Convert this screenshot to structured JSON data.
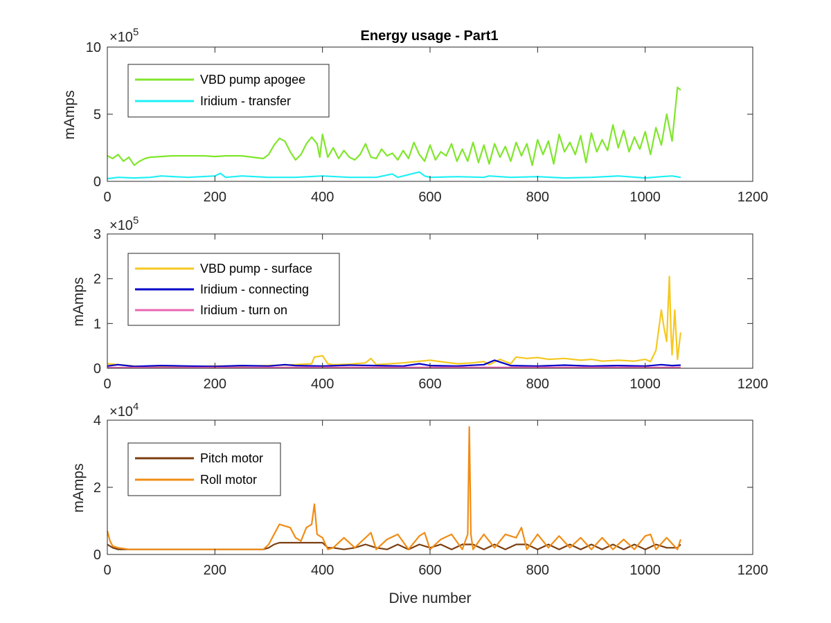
{
  "chart_data": [
    {
      "type": "line",
      "title": "Energy usage - Part1",
      "xlabel": "",
      "ylabel": "mAmps",
      "multiplier_base": "10",
      "multiplier_exp": "5",
      "xlim": [
        0,
        1200
      ],
      "ylim": [
        0,
        1000000
      ],
      "xticks": [
        "0",
        "200",
        "400",
        "600",
        "800",
        "1000",
        "1200"
      ],
      "yticks": [
        "0",
        "5",
        "10"
      ],
      "ytick_values": [
        0,
        500000,
        1000000
      ],
      "legend_position": "top-left",
      "series": [
        {
          "name": "VBD pump apogee",
          "color": "#7fe62b",
          "x": [
            0,
            10,
            20,
            30,
            40,
            50,
            60,
            70,
            80,
            100,
            120,
            150,
            180,
            200,
            220,
            250,
            270,
            290,
            300,
            310,
            320,
            330,
            340,
            350,
            360,
            370,
            380,
            390,
            395,
            400,
            410,
            420,
            430,
            440,
            450,
            460,
            470,
            480,
            490,
            500,
            510,
            520,
            530,
            540,
            550,
            560,
            570,
            580,
            590,
            600,
            610,
            620,
            630,
            640,
            650,
            660,
            670,
            680,
            690,
            700,
            710,
            720,
            730,
            740,
            750,
            760,
            770,
            780,
            790,
            800,
            810,
            820,
            830,
            840,
            850,
            860,
            870,
            880,
            890,
            900,
            910,
            920,
            930,
            940,
            950,
            960,
            970,
            980,
            990,
            1000,
            1010,
            1020,
            1030,
            1040,
            1050,
            1060,
            1066
          ],
          "y": [
            190000,
            170000,
            200000,
            150000,
            180000,
            120000,
            150000,
            170000,
            180000,
            185000,
            190000,
            190000,
            190000,
            185000,
            190000,
            190000,
            180000,
            170000,
            200000,
            270000,
            320000,
            300000,
            220000,
            160000,
            200000,
            280000,
            330000,
            280000,
            180000,
            350000,
            180000,
            250000,
            170000,
            230000,
            180000,
            160000,
            200000,
            280000,
            180000,
            170000,
            240000,
            190000,
            210000,
            160000,
            230000,
            170000,
            290000,
            200000,
            150000,
            270000,
            160000,
            220000,
            190000,
            280000,
            150000,
            240000,
            150000,
            290000,
            140000,
            270000,
            130000,
            280000,
            180000,
            260000,
            150000,
            290000,
            190000,
            280000,
            120000,
            310000,
            200000,
            300000,
            130000,
            350000,
            220000,
            290000,
            200000,
            340000,
            140000,
            360000,
            220000,
            310000,
            230000,
            420000,
            250000,
            380000,
            220000,
            330000,
            240000,
            370000,
            200000,
            400000,
            270000,
            500000,
            300000,
            700000,
            680000
          ]
        },
        {
          "name": "Iridium - transfer",
          "color": "#1ef0f5",
          "x": [
            0,
            20,
            50,
            80,
            100,
            150,
            200,
            210,
            220,
            250,
            300,
            350,
            400,
            450,
            500,
            530,
            540,
            580,
            590,
            600,
            650,
            700,
            710,
            750,
            800,
            850,
            900,
            950,
            1000,
            1030,
            1050,
            1066
          ],
          "y": [
            20000,
            30000,
            25000,
            30000,
            40000,
            30000,
            40000,
            60000,
            30000,
            40000,
            30000,
            30000,
            40000,
            30000,
            30000,
            55000,
            30000,
            70000,
            40000,
            30000,
            35000,
            30000,
            40000,
            30000,
            35000,
            25000,
            30000,
            40000,
            25000,
            35000,
            40000,
            30000
          ]
        }
      ]
    },
    {
      "type": "line",
      "title": "",
      "xlabel": "",
      "ylabel": "mAmps",
      "multiplier_base": "10",
      "multiplier_exp": "5",
      "xlim": [
        0,
        1200
      ],
      "ylim": [
        0,
        300000
      ],
      "xticks": [
        "0",
        "200",
        "400",
        "600",
        "800",
        "1000",
        "1200"
      ],
      "yticks": [
        "0",
        "1",
        "2",
        "3"
      ],
      "ytick_values": [
        0,
        100000,
        200000,
        300000
      ],
      "legend_position": "top-left",
      "series": [
        {
          "name": "VBD pump - surface",
          "color": "#f5c81e",
          "x": [
            0,
            50,
            100,
            150,
            200,
            250,
            300,
            350,
            380,
            385,
            400,
            410,
            420,
            450,
            480,
            490,
            500,
            550,
            600,
            650,
            680,
            700,
            710,
            730,
            750,
            760,
            780,
            800,
            820,
            850,
            880,
            900,
            920,
            950,
            980,
            1000,
            1010,
            1020,
            1030,
            1035,
            1040,
            1045,
            1048,
            1050,
            1055,
            1060,
            1066
          ],
          "y": [
            10000,
            5000,
            3000,
            4000,
            5000,
            5000,
            6000,
            8000,
            10000,
            25000,
            28000,
            10000,
            8000,
            9000,
            12000,
            22000,
            8000,
            12000,
            18000,
            10000,
            12000,
            15000,
            8000,
            20000,
            10000,
            25000,
            22000,
            24000,
            20000,
            22000,
            18000,
            20000,
            16000,
            18000,
            16000,
            20000,
            15000,
            40000,
            130000,
            90000,
            60000,
            205000,
            80000,
            30000,
            130000,
            20000,
            80000
          ]
        },
        {
          "name": "Iridium - connecting",
          "color": "#0000c8",
          "x": [
            0,
            20,
            50,
            100,
            150,
            200,
            250,
            300,
            330,
            350,
            400,
            450,
            500,
            550,
            580,
            600,
            650,
            700,
            720,
            750,
            800,
            850,
            900,
            950,
            1000,
            1030,
            1050,
            1066
          ],
          "y": [
            5000,
            8000,
            4000,
            6000,
            5000,
            4000,
            6000,
            5000,
            8000,
            6000,
            5000,
            7000,
            6000,
            5000,
            10000,
            6000,
            5000,
            8000,
            18000,
            6000,
            5000,
            7000,
            5000,
            6000,
            5000,
            8000,
            6000,
            7000
          ]
        },
        {
          "name": "Iridium - turn on",
          "color": "#e866b0",
          "x": [
            0,
            200,
            400,
            600,
            800,
            1000,
            1066
          ],
          "y": [
            1500,
            1500,
            2000,
            2000,
            2000,
            2000,
            2000
          ]
        }
      ]
    },
    {
      "type": "line",
      "title": "",
      "xlabel": "Dive number",
      "ylabel": "mAmps",
      "multiplier_base": "10",
      "multiplier_exp": "4",
      "xlim": [
        0,
        1200
      ],
      "ylim": [
        0,
        40000
      ],
      "xticks": [
        "0",
        "200",
        "400",
        "600",
        "800",
        "1000",
        "1200"
      ],
      "yticks": [
        "0",
        "2",
        "4"
      ],
      "ytick_values": [
        0,
        20000,
        40000
      ],
      "legend_position": "top-left",
      "series": [
        {
          "name": "Pitch motor",
          "color": "#7a3d0f",
          "x": [
            0,
            5,
            10,
            20,
            40,
            60,
            80,
            100,
            150,
            200,
            250,
            290,
            300,
            310,
            320,
            350,
            380,
            400,
            410,
            420,
            440,
            460,
            480,
            500,
            520,
            540,
            560,
            580,
            600,
            620,
            640,
            660,
            680,
            700,
            720,
            740,
            760,
            780,
            800,
            820,
            840,
            860,
            880,
            900,
            920,
            940,
            960,
            980,
            1000,
            1020,
            1040,
            1060,
            1066
          ],
          "y": [
            3000,
            2500,
            2000,
            1500,
            1500,
            1500,
            1500,
            1500,
            1500,
            1500,
            1500,
            1500,
            2000,
            3000,
            3500,
            3500,
            3500,
            3500,
            2000,
            2000,
            1500,
            2000,
            3000,
            2000,
            1500,
            3000,
            1500,
            3000,
            2000,
            3000,
            1500,
            3000,
            3000,
            1500,
            3000,
            1500,
            3000,
            3000,
            1500,
            3000,
            1500,
            3000,
            1500,
            3000,
            1500,
            3000,
            1500,
            3000,
            1500,
            3000,
            2000,
            2000,
            3000
          ]
        },
        {
          "name": "Roll motor",
          "color": "#f08c14",
          "x": [
            0,
            5,
            10,
            20,
            40,
            60,
            80,
            100,
            150,
            200,
            250,
            290,
            300,
            320,
            340,
            350,
            360,
            370,
            380,
            385,
            390,
            400,
            410,
            420,
            440,
            460,
            480,
            490,
            500,
            520,
            540,
            560,
            580,
            590,
            600,
            620,
            640,
            660,
            670,
            673,
            676,
            680,
            700,
            720,
            740,
            760,
            770,
            780,
            800,
            820,
            840,
            860,
            880,
            900,
            920,
            940,
            960,
            980,
            1000,
            1010,
            1020,
            1040,
            1060,
            1066
          ],
          "y": [
            7000,
            4000,
            2500,
            2000,
            1500,
            1500,
            1500,
            1500,
            1500,
            1500,
            1500,
            1500,
            3000,
            9000,
            8000,
            5000,
            4000,
            8000,
            9000,
            15000,
            6000,
            5000,
            1500,
            2000,
            5000,
            2000,
            5000,
            6500,
            1500,
            4500,
            6000,
            1500,
            5500,
            6500,
            1500,
            4500,
            6000,
            1500,
            6000,
            38000,
            6000,
            1500,
            6000,
            2000,
            6000,
            5000,
            8000,
            1500,
            6000,
            2000,
            5500,
            2000,
            5000,
            1500,
            5000,
            1500,
            4500,
            1500,
            5500,
            6000,
            1500,
            5000,
            1500,
            4500
          ]
        }
      ]
    }
  ]
}
